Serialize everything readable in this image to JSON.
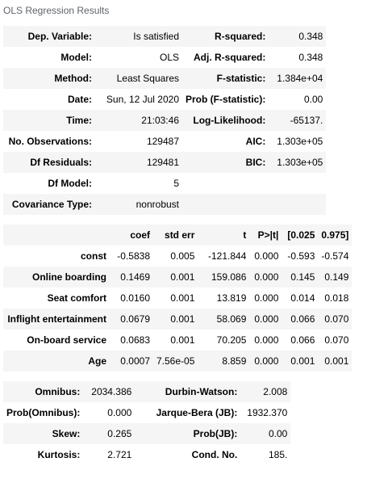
{
  "caption": "OLS Regression Results",
  "summary": {
    "rows": [
      [
        "Dep. Variable:",
        "Is satisfied",
        "R-squared:",
        "0.348"
      ],
      [
        "Model:",
        "OLS",
        "Adj. R-squared:",
        "0.348"
      ],
      [
        "Method:",
        "Least Squares",
        "F-statistic:",
        "1.384e+04"
      ],
      [
        "Date:",
        "Sun, 12 Jul 2020",
        "Prob (F-statistic):",
        "0.00"
      ],
      [
        "Time:",
        "21:03:46",
        "Log-Likelihood:",
        "-65137."
      ],
      [
        "No. Observations:",
        "129487",
        "AIC:",
        "1.303e+05"
      ],
      [
        "Df Residuals:",
        "129481",
        "BIC:",
        "1.303e+05"
      ],
      [
        "Df Model:",
        "5",
        "",
        ""
      ],
      [
        "Covariance Type:",
        "nonrobust",
        "",
        ""
      ]
    ]
  },
  "coefs": {
    "headers": [
      "",
      "coef",
      "std err",
      "t",
      "P>|t|",
      "[0.025",
      "0.975]"
    ],
    "rows": [
      [
        "const",
        "-0.5838",
        "0.005",
        "-121.844",
        "0.000",
        "-0.593",
        "-0.574"
      ],
      [
        "Online boarding",
        "0.1469",
        "0.001",
        "159.086",
        "0.000",
        "0.145",
        "0.149"
      ],
      [
        "Seat comfort",
        "0.0160",
        "0.001",
        "13.819",
        "0.000",
        "0.014",
        "0.018"
      ],
      [
        "Inflight entertainment",
        "0.0679",
        "0.001",
        "58.069",
        "0.000",
        "0.066",
        "0.070"
      ],
      [
        "On-board service",
        "0.0683",
        "0.001",
        "70.205",
        "0.000",
        "0.066",
        "0.070"
      ],
      [
        "Age",
        "0.0007",
        "7.56e-05",
        "8.859",
        "0.000",
        "0.001",
        "0.001"
      ]
    ]
  },
  "diagnostics": {
    "rows": [
      [
        "Omnibus:",
        "2034.386",
        "Durbin-Watson:",
        "2.008"
      ],
      [
        "Prob(Omnibus):",
        "0.000",
        "Jarque-Bera (JB):",
        "1932.370"
      ],
      [
        "Skew:",
        "0.265",
        "Prob(JB):",
        "0.00"
      ],
      [
        "Kurtosis:",
        "2.721",
        "Cond. No.",
        "185."
      ]
    ]
  }
}
